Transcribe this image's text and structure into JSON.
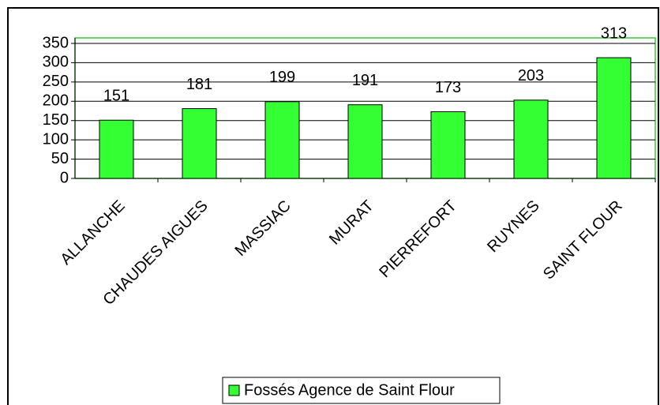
{
  "chart_data": {
    "type": "bar",
    "categories": [
      "ALLANCHE",
      "CHAUDES AIGUES",
      "MASSIAC",
      "MURAT",
      "PIERREFORT",
      "RUYNES",
      "SAINT FLOUR"
    ],
    "series": [
      {
        "name": "Fossés Agence de Saint Flour",
        "color": "#33ff33",
        "values": [
          151,
          181,
          199,
          191,
          173,
          203,
          313
        ]
      }
    ],
    "ylim": [
      0,
      350
    ],
    "yticks": [
      0,
      50,
      100,
      150,
      200,
      250,
      300,
      350
    ],
    "grid": true,
    "legend": "bottom"
  }
}
